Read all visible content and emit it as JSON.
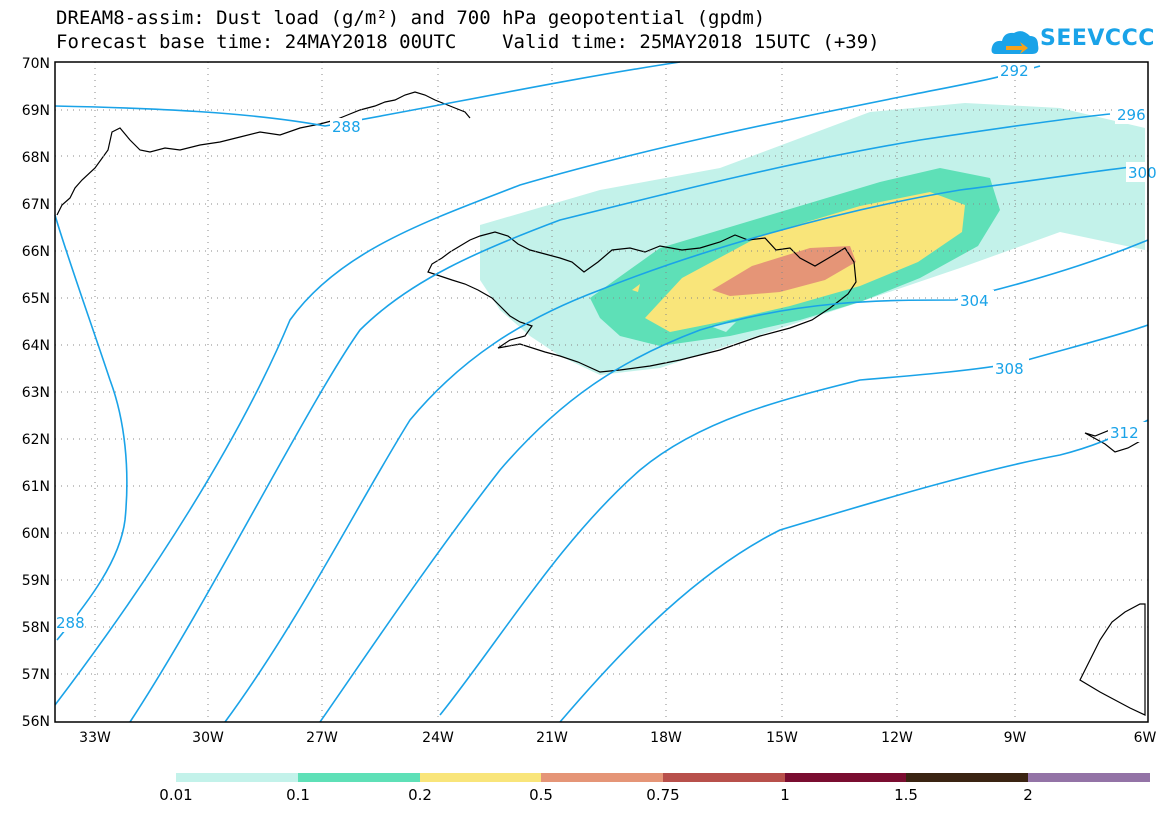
{
  "title_line1": "DREAM8-assim: Dust load (g/m²) and 700 hPa geopotential (gpdm)",
  "title_line2": "Forecast base time: 24MAY2018 00UTC    Valid time: 25MAY2018 15UTC (+39)",
  "logo_text": "SEEVCCC",
  "logo_icon": "cloud-icon",
  "map": {
    "lon_labels": [
      "33W",
      "30W",
      "27W",
      "24W",
      "21W",
      "18W",
      "15W",
      "12W",
      "9W",
      "6W"
    ],
    "lat_labels": [
      "70N",
      "69N",
      "68N",
      "67N",
      "66N",
      "65N",
      "64N",
      "63N",
      "62N",
      "61N",
      "60N",
      "59N",
      "58N",
      "57N",
      "56N"
    ],
    "contour_labels": [
      "288",
      "292",
      "296",
      "300",
      "304",
      "308",
      "312",
      "288"
    ],
    "contour_color": "#1aa3e8"
  },
  "legend": {
    "labels": [
      "0.01",
      "0.1",
      "0.2",
      "0.5",
      "0.75",
      "1",
      "1.5",
      "2"
    ],
    "colors": [
      "#c3f2ea",
      "#5ee0b7",
      "#f9e57a",
      "#e59577",
      "#b8504b",
      "#7a0d30",
      "#3a2412",
      "#9373a6"
    ]
  }
}
